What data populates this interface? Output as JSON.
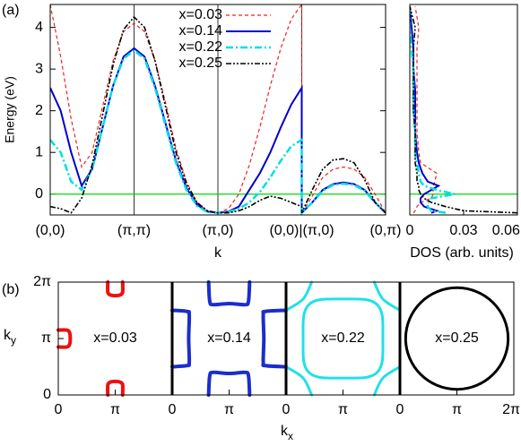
{
  "panel_labels": [
    "(a)",
    "(b)"
  ],
  "chart_data": [
    {
      "type": "line",
      "xlabel": "k",
      "ylabel": "Energy (eV)",
      "xlim": [
        0,
        4
      ],
      "ylim": [
        -0.5,
        4.55
      ],
      "yticks": [
        0,
        1,
        2,
        3,
        4
      ],
      "xticks": [
        {
          "value": 0,
          "label": "(0,0)"
        },
        {
          "value": 1,
          "label": "(π,π)"
        },
        {
          "value": 2,
          "label": "(π,0)"
        },
        {
          "value": 3,
          "label": "(0,0)|(π,0)"
        },
        {
          "value": 4,
          "label": "(0,π)"
        }
      ],
      "vlines": true,
      "hline": {
        "value": 0,
        "color": "#00dd00"
      },
      "legend": "upper center",
      "x": [
        0,
        0.125,
        0.25,
        0.375,
        0.5,
        0.625,
        0.75,
        0.875,
        1,
        1.125,
        1.25,
        1.375,
        1.5,
        1.625,
        1.75,
        1.875,
        2,
        2.125,
        2.25,
        2.375,
        2.5,
        2.625,
        2.75,
        2.875,
        3,
        3,
        3.125,
        3.25,
        3.375,
        3.5,
        3.625,
        3.75,
        3.875,
        4
      ],
      "series": [
        {
          "name": "x=0.03",
          "color": "#ee2222",
          "dash": "4,3",
          "width": 1.2,
          "values": [
            4.55,
            3.3,
            1.8,
            0.65,
            1.0,
            2.1,
            3.2,
            3.9,
            4.1,
            3.9,
            3.2,
            2.2,
            1.1,
            0.3,
            -0.2,
            -0.42,
            -0.45,
            -0.35,
            0.0,
            0.7,
            1.6,
            2.6,
            3.5,
            4.2,
            4.55,
            -0.45,
            -0.05,
            0.4,
            0.6,
            0.65,
            0.6,
            0.4,
            0.0,
            -0.45
          ]
        },
        {
          "name": "x=0.14",
          "color": "#0000cc",
          "dash": "none",
          "width": 2,
          "values": [
            2.55,
            2.0,
            1.0,
            0.2,
            0.6,
            1.6,
            2.6,
            3.3,
            3.5,
            3.3,
            2.6,
            1.7,
            0.8,
            0.15,
            -0.25,
            -0.42,
            -0.45,
            -0.42,
            -0.3,
            0.1,
            0.5,
            1.0,
            1.6,
            2.15,
            2.55,
            -0.45,
            -0.2,
            0.1,
            0.24,
            0.28,
            0.24,
            0.1,
            -0.2,
            -0.45
          ]
        },
        {
          "name": "x=0.22",
          "color": "#00dde8",
          "dash": "8,3,2,3",
          "width": 2.5,
          "values": [
            1.3,
            1.0,
            0.3,
            0.1,
            0.6,
            1.6,
            2.6,
            3.25,
            3.45,
            3.25,
            2.55,
            1.65,
            0.75,
            0.1,
            -0.28,
            -0.43,
            -0.45,
            -0.43,
            -0.35,
            -0.2,
            0.05,
            0.4,
            0.8,
            1.15,
            1.3,
            -0.45,
            -0.2,
            0.08,
            0.22,
            0.25,
            0.22,
            0.08,
            -0.2,
            -0.45
          ]
        },
        {
          "name": "x=0.25",
          "color": "#000000",
          "dash": "6,2,2,2,2,2",
          "width": 1.6,
          "values": [
            -0.3,
            -0.35,
            -0.45,
            -0.1,
            0.7,
            1.9,
            3.1,
            3.95,
            4.25,
            4.0,
            3.2,
            2.1,
            1.0,
            0.25,
            -0.2,
            -0.4,
            -0.45,
            -0.45,
            -0.4,
            -0.3,
            -0.15,
            -0.05,
            -0.1,
            -0.2,
            -0.3,
            -0.45,
            0.1,
            0.6,
            0.82,
            0.85,
            0.75,
            0.35,
            -0.2,
            -0.45
          ]
        }
      ]
    },
    {
      "type": "dos",
      "xlabel": "DOS (arb. units)",
      "xlim": [
        0,
        0.06
      ],
      "xticks": [
        0,
        0.03,
        0.06
      ],
      "ylim": [
        -0.5,
        4.55
      ],
      "hline": {
        "value": 0,
        "color": "#00dd00"
      },
      "y": [
        -0.45,
        -0.4,
        -0.3,
        -0.2,
        -0.1,
        0,
        0.1,
        0.2,
        0.3,
        0.5,
        0.75,
        1,
        1.5,
        2,
        2.5,
        3,
        3.5,
        4,
        4.5
      ],
      "series": [
        {
          "color": "#ee2222",
          "dash": "4,3",
          "width": 1.2,
          "values": [
            0.002,
            0.003,
            0.004,
            0.006,
            0.012,
            0.013,
            0.013,
            0.013,
            0.014,
            0.015,
            0.006,
            0.005,
            0.004,
            0.004,
            0.004,
            0.004,
            0.004,
            0.005,
            0.003
          ]
        },
        {
          "color": "#0000cc",
          "dash": "none",
          "width": 2,
          "values": [
            0.012,
            0.015,
            0.008,
            0.006,
            0.006,
            0.008,
            0.012,
            0.016,
            0.01,
            0.007,
            0.005,
            0.004,
            0.003,
            0.003,
            0.003,
            0.002,
            0.002,
            0.001,
            0
          ]
        },
        {
          "color": "#00dde8",
          "dash": "8,3,2,3",
          "width": 2.5,
          "values": [
            0.02,
            0.012,
            0.01,
            0.01,
            0.012,
            0.025,
            0.015,
            0.008,
            0.006,
            0.005,
            0.004,
            0.003,
            0.003,
            0.002,
            0.002,
            0.002,
            0.001,
            0,
            0
          ]
        },
        {
          "color": "#000000",
          "dash": "6,2,2,2,2,2",
          "width": 1.6,
          "values": [
            0.06,
            0.03,
            0.02,
            0.012,
            0.008,
            0.006,
            0.005,
            0.005,
            0.004,
            0.004,
            0.003,
            0.003,
            0.003,
            0.002,
            0.002,
            0.002,
            0.002,
            0.003,
            0
          ]
        }
      ]
    },
    {
      "type": "contour",
      "xlabel": {
        "text": "k",
        "sub": "x"
      },
      "ylabel": {
        "text": "k",
        "sub": "y"
      },
      "ylim": [
        0,
        2
      ],
      "yticks": [
        0,
        {
          "value": 1,
          "label": "π"
        },
        {
          "value": 2,
          "label": "2π"
        }
      ],
      "panels": [
        {
          "label": "x=0.03",
          "color": "#ee1111",
          "width": 4,
          "xlim": [
            0,
            2
          ],
          "xticks": [
            0,
            {
              "value": 1,
              "label": "π"
            }
          ],
          "contours": [
            {
              "closed": false,
              "x": [
                0.87,
                0.87,
                0.92,
                1.0,
                1.08,
                1.13,
                1.13
              ],
              "y": [
                2,
                1.82,
                1.77,
                1.76,
                1.77,
                1.82,
                2
              ]
            },
            {
              "closed": false,
              "x": [
                0.87,
                0.87,
                0.92,
                1.0,
                1.08,
                1.13,
                1.13
              ],
              "y": [
                0,
                0.18,
                0.23,
                0.24,
                0.23,
                0.18,
                0
              ]
            },
            {
              "closed": false,
              "x": [
                0,
                0.15,
                0.2,
                0.21,
                0.2,
                0.15,
                0
              ],
              "y": [
                0.85,
                0.85,
                0.9,
                1.0,
                1.1,
                1.15,
                1.15
              ]
            }
          ]
        },
        {
          "label": "x=0.14",
          "color": "#1a2ecc",
          "width": 4,
          "xlim": [
            0,
            2
          ],
          "xticks": [
            0,
            {
              "value": 1,
              "label": "π"
            }
          ],
          "contours": [
            {
              "closed": false,
              "x": [
                0.64,
                0.66,
                0.72,
                1.0,
                1.28,
                1.34,
                1.36
              ],
              "y": [
                2,
                1.66,
                1.6,
                1.62,
                1.6,
                1.66,
                2
              ]
            },
            {
              "closed": false,
              "x": [
                0.64,
                0.66,
                0.72,
                1.0,
                1.28,
                1.34,
                1.36
              ],
              "y": [
                0,
                0.34,
                0.4,
                0.38,
                0.4,
                0.34,
                0
              ]
            },
            {
              "closed": false,
              "x": [
                0,
                0.26,
                0.3,
                0.29,
                0.3,
                0.26,
                0
              ],
              "y": [
                0.5,
                0.52,
                0.58,
                1.0,
                1.42,
                1.48,
                1.5
              ]
            },
            {
              "closed": false,
              "x": [
                2,
                1.64,
                1.6,
                1.61,
                1.6,
                1.64,
                2
              ],
              "y": [
                0.5,
                0.52,
                0.58,
                1.0,
                1.42,
                1.48,
                1.5
              ]
            }
          ]
        },
        {
          "label": "x=0.22",
          "color": "#22e0e8",
          "width": 3,
          "xlim": [
            0,
            2
          ],
          "xticks": [
            0,
            {
              "value": 1,
              "label": "π"
            }
          ],
          "contours": [
            {
              "closed": true,
              "x": [
                1.7,
                1.69,
                1.6,
                1.4,
                1.0,
                0.6,
                0.4,
                0.31,
                0.3,
                0.31,
                0.4,
                0.6,
                1.0,
                1.4,
                1.6,
                1.69
              ],
              "y": [
                1.0,
                1.4,
                1.6,
                1.69,
                1.7,
                1.69,
                1.6,
                1.4,
                1.0,
                0.6,
                0.4,
                0.31,
                0.3,
                0.31,
                0.4,
                0.6
              ]
            },
            {
              "closed": false,
              "x": [
                0,
                0.3,
                0.45
              ],
              "y": [
                1.5,
                1.7,
                2
              ]
            },
            {
              "closed": false,
              "x": [
                2,
                1.7,
                1.55
              ],
              "y": [
                1.5,
                1.7,
                2
              ]
            },
            {
              "closed": false,
              "x": [
                0,
                0.3,
                0.45
              ],
              "y": [
                0.5,
                0.3,
                0
              ]
            },
            {
              "closed": false,
              "x": [
                2,
                1.7,
                1.55
              ],
              "y": [
                0.5,
                0.3,
                0
              ]
            }
          ]
        },
        {
          "label": "x=0.25",
          "color": "#000000",
          "width": 3,
          "xlim": [
            0,
            2
          ],
          "xticks": [
            0,
            {
              "value": 1,
              "label": "π"
            },
            {
              "value": 2,
              "label": "2π"
            }
          ],
          "contours": [
            {
              "closed": true,
              "x": [
                1.9,
                1.831,
                1.636,
                1.344,
                1,
                0.656,
                0.364,
                0.169,
                0.1,
                0.169,
                0.364,
                0.656,
                1,
                1.344,
                1.636,
                1.831
              ],
              "y": [
                1,
                1.344,
                1.636,
                1.831,
                1.9,
                1.831,
                1.636,
                1.344,
                1,
                0.656,
                0.364,
                0.169,
                0.1,
                0.169,
                0.364,
                0.656
              ]
            }
          ]
        }
      ]
    }
  ]
}
